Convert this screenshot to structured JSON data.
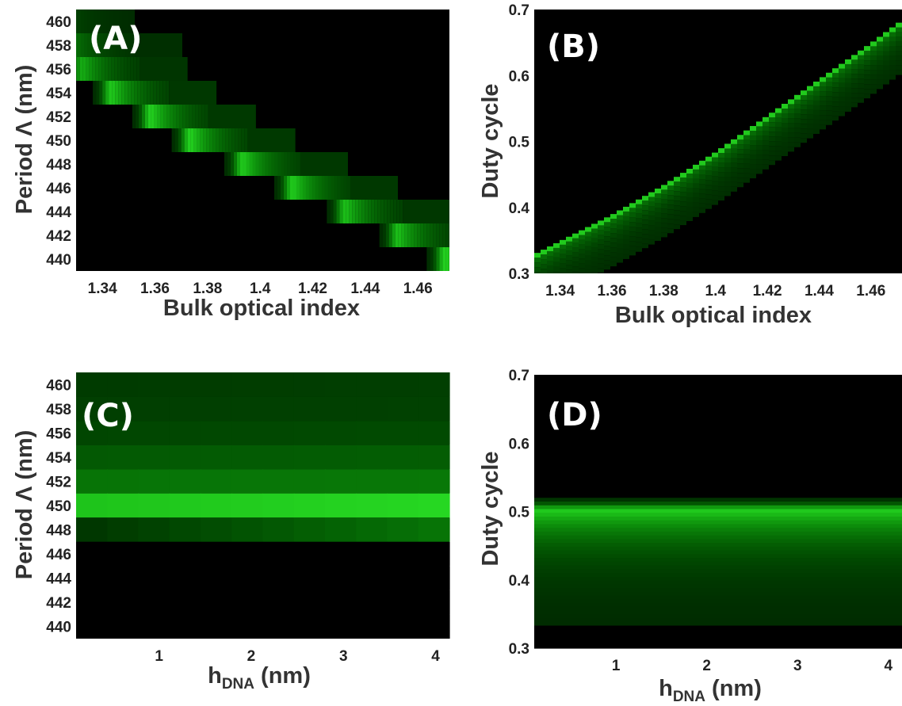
{
  "chart_data": [
    {
      "panel": "(A)",
      "type": "heatmap",
      "xlabel": "Bulk optical index",
      "ylabel": "Period  Λ (nm)",
      "xlim": [
        1.33,
        1.472
      ],
      "ylim": [
        439,
        461
      ],
      "xticks": [
        "1.34",
        "1.36",
        "1.38",
        "1.4",
        "1.42",
        "1.44",
        "1.46"
      ],
      "yticks": [
        "440",
        "442",
        "444",
        "446",
        "448",
        "450",
        "452",
        "454",
        "456",
        "458",
        "460"
      ],
      "colormap": "black-green",
      "resonance_peaks": [
        {
          "period": 460,
          "index": 1.33,
          "intensity": 0.12
        },
        {
          "period": 458,
          "index": 1.33,
          "intensity": 0.35
        },
        {
          "period": 456,
          "index": 1.332,
          "intensity": 0.7
        },
        {
          "period": 454,
          "index": 1.343,
          "intensity": 0.85
        },
        {
          "period": 452,
          "index": 1.358,
          "intensity": 0.9
        },
        {
          "period": 450,
          "index": 1.373,
          "intensity": 0.9
        },
        {
          "period": 448,
          "index": 1.393,
          "intensity": 0.85
        },
        {
          "period": 446,
          "index": 1.412,
          "intensity": 0.85
        },
        {
          "period": 444,
          "index": 1.432,
          "intensity": 0.8
        },
        {
          "period": 442,
          "index": 1.452,
          "intensity": 0.8
        },
        {
          "period": 440,
          "index": 1.47,
          "intensity": 0.9
        }
      ]
    },
    {
      "panel": "(B)",
      "type": "heatmap",
      "xlabel": "Bulk optical index",
      "ylabel": "Duty cycle",
      "xlim": [
        1.33,
        1.472
      ],
      "ylim": [
        0.3,
        0.7
      ],
      "xticks": [
        "1.34",
        "1.36",
        "1.38",
        "1.4",
        "1.42",
        "1.44",
        "1.46"
      ],
      "yticks": [
        "0.3",
        "0.4",
        "0.5",
        "0.6",
        "0.7"
      ],
      "colormap": "black-green",
      "resonance_line": [
        {
          "index": 1.33,
          "duty_cycle": 0.325
        },
        {
          "index": 1.36,
          "duty_cycle": 0.385
        },
        {
          "index": 1.38,
          "duty_cycle": 0.43
        },
        {
          "index": 1.4,
          "duty_cycle": 0.48
        },
        {
          "index": 1.42,
          "duty_cycle": 0.535
        },
        {
          "index": 1.44,
          "duty_cycle": 0.59
        },
        {
          "index": 1.46,
          "duty_cycle": 0.645
        },
        {
          "index": 1.472,
          "duty_cycle": 0.68
        }
      ]
    },
    {
      "panel": "(C)",
      "type": "heatmap",
      "xlabel": "h",
      "xlabel_sub": "DNA",
      "xlabel_unit": " (nm)",
      "ylabel": "Period  Λ (nm)",
      "xlim": [
        0.1,
        4.15
      ],
      "ylim": [
        439,
        461
      ],
      "xticks": [
        "1",
        "2",
        "3",
        "4"
      ],
      "yticks": [
        "440",
        "442",
        "444",
        "446",
        "448",
        "450",
        "452",
        "454",
        "456",
        "458",
        "460"
      ],
      "colormap": "black-green",
      "rows": [
        {
          "period": 460,
          "intensity_start": 0.1,
          "intensity_end": 0.12
        },
        {
          "period": 458,
          "intensity_start": 0.12,
          "intensity_end": 0.13
        },
        {
          "period": 456,
          "intensity_start": 0.16,
          "intensity_end": 0.18
        },
        {
          "period": 454,
          "intensity_start": 0.26,
          "intensity_end": 0.28
        },
        {
          "period": 452,
          "intensity_start": 0.4,
          "intensity_end": 0.42
        },
        {
          "period": 450,
          "intensity_start": 0.82,
          "intensity_end": 0.92
        },
        {
          "period": 448,
          "intensity_start": 0.08,
          "intensity_end": 0.4
        },
        {
          "period": 446,
          "intensity_start": 0.0,
          "intensity_end": 0.0
        },
        {
          "period": 444,
          "intensity_start": 0.0,
          "intensity_end": 0.0
        },
        {
          "period": 442,
          "intensity_start": 0.0,
          "intensity_end": 0.0
        },
        {
          "period": 440,
          "intensity_start": 0.0,
          "intensity_end": 0.0
        }
      ]
    },
    {
      "panel": "(D)",
      "type": "heatmap",
      "xlabel": "h",
      "xlabel_sub": "DNA",
      "xlabel_unit": " (nm)",
      "ylabel": "Duty cycle",
      "xlim": [
        0.1,
        4.15
      ],
      "ylim": [
        0.3,
        0.7
      ],
      "xticks": [
        "1",
        "2",
        "3",
        "4"
      ],
      "yticks": [
        "0.3",
        "0.4",
        "0.5",
        "0.6",
        "0.7"
      ],
      "colormap": "black-green",
      "band": {
        "center_duty_cycle": 0.5,
        "top_edge": 0.52,
        "peak_intensity": 0.85
      }
    }
  ]
}
